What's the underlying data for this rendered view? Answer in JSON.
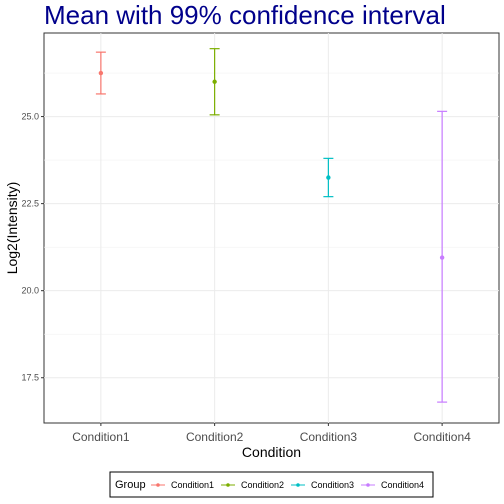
{
  "chart_data": {
    "type": "errorbar",
    "title": "Mean with 99% confidence interval",
    "xlabel": "Condition",
    "ylabel": "Log2(Intensity)",
    "categories": [
      "Condition1",
      "Condition2",
      "Condition3",
      "Condition4"
    ],
    "means": [
      26.25,
      26.0,
      23.25,
      20.95
    ],
    "lower": [
      25.65,
      25.05,
      22.7,
      16.8
    ],
    "upper": [
      26.85,
      26.95,
      23.8,
      25.15
    ],
    "colors": [
      "#F8766D",
      "#7CAE00",
      "#00BFC4",
      "#C77CFF"
    ],
    "ylim": [
      16.2,
      27.4
    ],
    "yticks": [
      17.5,
      20.0,
      22.5,
      25.0
    ],
    "ytick_labels": [
      "17.5",
      "20.0",
      "22.5",
      "25.0"
    ],
    "grid": true,
    "legend": {
      "title": "Group",
      "position": "bottom",
      "entries": [
        "Condition1",
        "Condition2",
        "Condition3",
        "Condition4"
      ]
    }
  }
}
